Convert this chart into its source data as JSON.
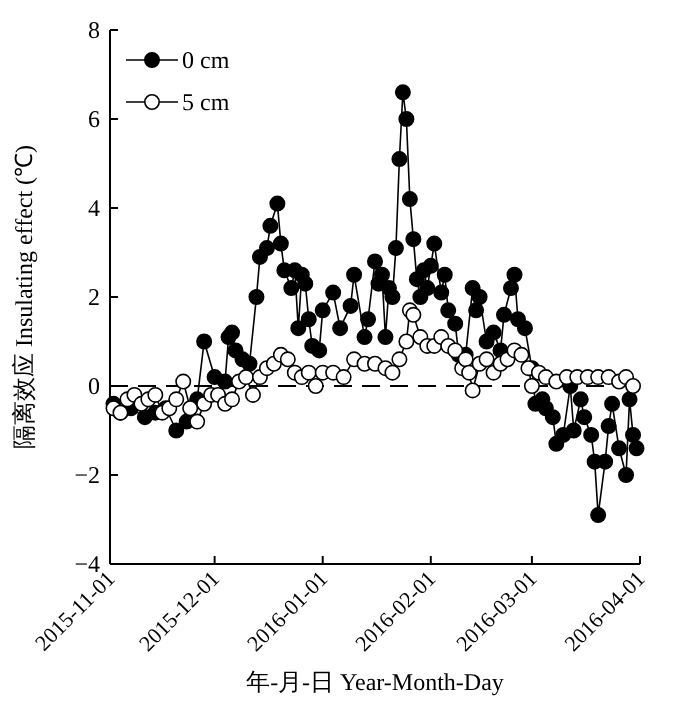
{
  "chart_data": {
    "type": "line",
    "xlabel": "年-月-日 Year-Month-Day",
    "ylabel": "隔离效应 Insulating effect (℃)",
    "xlim": [
      "2015-11-01",
      "2016-04-01"
    ],
    "xticks": [
      {
        "value": "2015-11-01",
        "label": "2015-11-01"
      },
      {
        "value": "2015-12-01",
        "label": "2015-12-01"
      },
      {
        "value": "2016-01-01",
        "label": "2016-01-01"
      },
      {
        "value": "2016-02-01",
        "label": "2016-02-01"
      },
      {
        "value": "2016-03-01",
        "label": "2016-03-01"
      },
      {
        "value": "2016-04-01",
        "label": "2016-04-01"
      }
    ],
    "ylim": [
      -4,
      8
    ],
    "yticks": [
      -4,
      -2,
      0,
      2,
      4,
      6,
      8
    ],
    "legend": "top left",
    "marker": "circle",
    "line_style": "solid",
    "ref_lines": [
      {
        "axis": "y",
        "value": 0,
        "color": "#000000",
        "line_style": "dashed"
      }
    ],
    "series": [
      {
        "name": "0 cm",
        "color": "#000000",
        "x": [
          "2015-11-02",
          "2015-11-04",
          "2015-11-07",
          "2015-11-11",
          "2015-11-14",
          "2015-11-17",
          "2015-11-20",
          "2015-11-23",
          "2015-11-26",
          "2015-11-28",
          "2015-12-01",
          "2015-12-04",
          "2015-12-05",
          "2015-12-06",
          "2015-12-07",
          "2015-12-09",
          "2015-12-11",
          "2015-12-13",
          "2015-12-14",
          "2015-12-16",
          "2015-12-17",
          "2015-12-19",
          "2015-12-20",
          "2015-12-21",
          "2015-12-23",
          "2015-12-24",
          "2015-12-25",
          "2015-12-26",
          "2015-12-27",
          "2015-12-28",
          "2015-12-29",
          "2015-12-31",
          "2016-01-01",
          "2016-01-04",
          "2016-01-06",
          "2016-01-09",
          "2016-01-10",
          "2016-01-13",
          "2016-01-14",
          "2016-01-16",
          "2016-01-17",
          "2016-01-18",
          "2016-01-19",
          "2016-01-20",
          "2016-01-21",
          "2016-01-22",
          "2016-01-23",
          "2016-01-24",
          "2016-01-25",
          "2016-01-26",
          "2016-01-27",
          "2016-01-28",
          "2016-01-29",
          "2016-01-30",
          "2016-01-31",
          "2016-02-01",
          "2016-02-02",
          "2016-02-04",
          "2016-02-05",
          "2016-02-06",
          "2016-02-08",
          "2016-02-09",
          "2016-02-11",
          "2016-02-13",
          "2016-02-14",
          "2016-02-15",
          "2016-02-17",
          "2016-02-19",
          "2016-02-21",
          "2016-02-22",
          "2016-02-24",
          "2016-02-25",
          "2016-02-26",
          "2016-02-28",
          "2016-03-01",
          "2016-03-02",
          "2016-03-04",
          "2016-03-05",
          "2016-03-07",
          "2016-03-08",
          "2016-03-10",
          "2016-03-12",
          "2016-03-13",
          "2016-03-15",
          "2016-03-16",
          "2016-03-18",
          "2016-03-19",
          "2016-03-20",
          "2016-03-22",
          "2016-03-23",
          "2016-03-24",
          "2016-03-26",
          "2016-03-28",
          "2016-03-29",
          "2016-03-30",
          "2016-03-31"
        ],
        "values": [
          -0.4,
          -0.6,
          -0.5,
          -0.7,
          -0.6,
          -0.5,
          -1.0,
          -0.8,
          -0.3,
          1.0,
          0.2,
          0.1,
          1.1,
          1.2,
          0.8,
          0.6,
          0.5,
          2.0,
          2.9,
          3.1,
          3.6,
          4.1,
          3.2,
          2.6,
          2.2,
          2.6,
          1.3,
          2.5,
          2.3,
          1.5,
          0.9,
          0.8,
          1.7,
          2.1,
          1.3,
          1.8,
          2.5,
          1.1,
          1.5,
          2.8,
          2.3,
          2.5,
          1.1,
          2.2,
          2.0,
          3.1,
          5.1,
          6.6,
          6.0,
          4.2,
          3.3,
          2.4,
          2.0,
          2.6,
          2.2,
          2.7,
          3.2,
          2.1,
          2.5,
          1.7,
          1.4,
          0.7,
          0.7,
          2.2,
          1.7,
          2.0,
          1.0,
          1.2,
          0.8,
          1.6,
          2.2,
          2.5,
          1.5,
          1.3,
          0.4,
          -0.4,
          -0.3,
          -0.5,
          -0.7,
          -1.3,
          -1.1,
          0.0,
          -1.0,
          -0.3,
          -0.7,
          -1.1,
          -1.7,
          -2.9,
          -1.7,
          -0.9,
          -0.4,
          -1.4,
          -2.0,
          -0.3,
          -1.1,
          -1.4
        ]
      },
      {
        "name": "5 cm",
        "color": "#ffffff",
        "x": [
          "2015-11-02",
          "2015-11-04",
          "2015-11-06",
          "2015-11-08",
          "2015-11-10",
          "2015-11-12",
          "2015-11-14",
          "2015-11-16",
          "2015-11-18",
          "2015-11-20",
          "2015-11-22",
          "2015-11-24",
          "2015-11-26",
          "2015-11-28",
          "2015-11-30",
          "2015-12-02",
          "2015-12-04",
          "2015-12-06",
          "2015-12-08",
          "2015-12-10",
          "2015-12-12",
          "2015-12-14",
          "2015-12-16",
          "2015-12-18",
          "2015-12-20",
          "2015-12-22",
          "2015-12-24",
          "2015-12-26",
          "2015-12-28",
          "2015-12-30",
          "2016-01-01",
          "2016-01-04",
          "2016-01-07",
          "2016-01-10",
          "2016-01-13",
          "2016-01-16",
          "2016-01-19",
          "2016-01-21",
          "2016-01-23",
          "2016-01-25",
          "2016-01-26",
          "2016-01-27",
          "2016-01-29",
          "2016-01-31",
          "2016-02-02",
          "2016-02-04",
          "2016-02-06",
          "2016-02-08",
          "2016-02-10",
          "2016-02-11",
          "2016-02-12",
          "2016-02-13",
          "2016-02-15",
          "2016-02-17",
          "2016-02-19",
          "2016-02-21",
          "2016-02-23",
          "2016-02-25",
          "2016-02-27",
          "2016-02-29",
          "2016-03-01",
          "2016-03-03",
          "2016-03-05",
          "2016-03-08",
          "2016-03-11",
          "2016-03-14",
          "2016-03-17",
          "2016-03-20",
          "2016-03-23",
          "2016-03-26",
          "2016-03-28",
          "2016-03-30"
        ],
        "values": [
          -0.5,
          -0.6,
          -0.3,
          -0.2,
          -0.4,
          -0.3,
          -0.2,
          -0.6,
          -0.5,
          -0.3,
          0.1,
          -0.5,
          -0.8,
          -0.4,
          -0.2,
          -0.2,
          -0.4,
          -0.3,
          0.1,
          0.2,
          -0.2,
          0.2,
          0.4,
          0.5,
          0.7,
          0.6,
          0.3,
          0.2,
          0.3,
          0.0,
          0.3,
          0.3,
          0.2,
          0.6,
          0.5,
          0.5,
          0.4,
          0.3,
          0.6,
          1.0,
          1.7,
          1.6,
          1.1,
          0.9,
          0.9,
          1.1,
          0.9,
          0.8,
          0.4,
          0.6,
          0.3,
          -0.1,
          0.5,
          0.6,
          0.3,
          0.5,
          0.6,
          0.8,
          0.7,
          0.4,
          0.0,
          0.3,
          0.2,
          0.1,
          0.2,
          0.2,
          0.2,
          0.2,
          0.2,
          0.1,
          0.2,
          0.0
        ]
      }
    ]
  }
}
